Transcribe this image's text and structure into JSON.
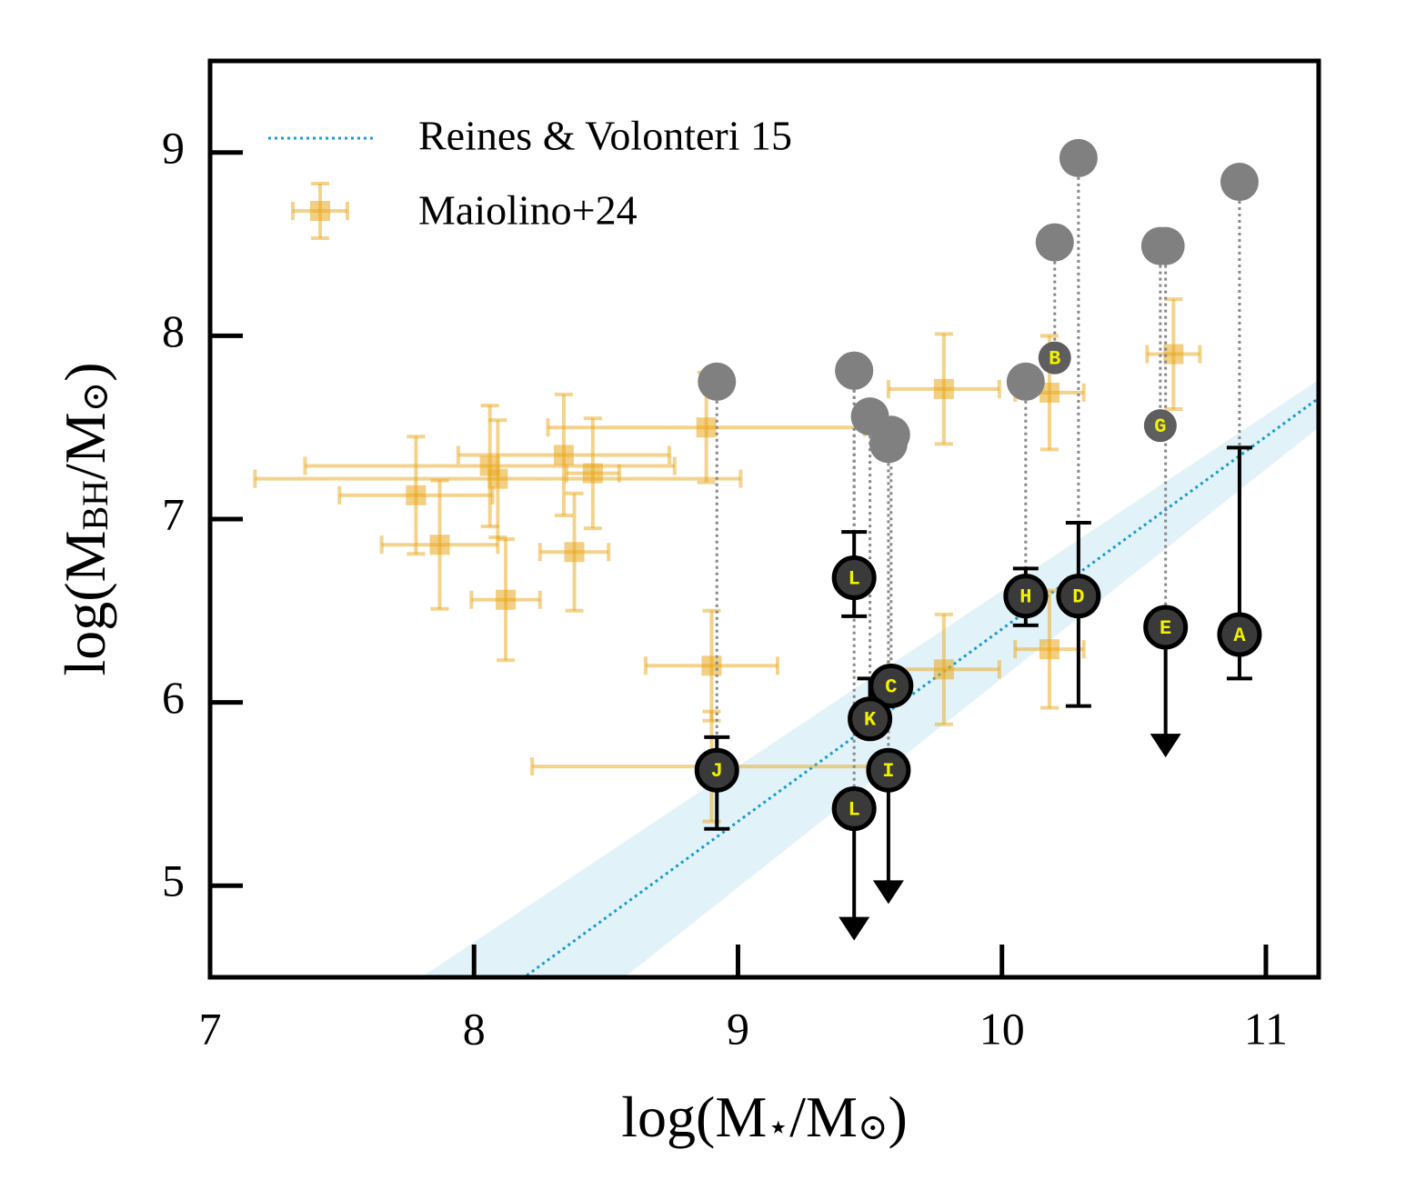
{
  "chart_data": {
    "type": "scatter",
    "xlim": [
      7,
      11.2
    ],
    "ylim": [
      4.5,
      9.5
    ],
    "xticks": [
      7,
      8,
      9,
      10,
      11
    ],
    "yticks": [
      5,
      6,
      7,
      8,
      9
    ],
    "x_label": [
      "log(M",
      "⋆",
      "/M",
      "⊙",
      ")"
    ],
    "y_label": [
      "log(M",
      "BH",
      "/M",
      "⊙",
      ")"
    ],
    "legend": "upper left",
    "grid": false,
    "relation": {
      "name": "Reines & Volonteri 15",
      "color": "#1a9bd0",
      "band_color": "#d6ecf6",
      "x": [
        8.2,
        11.2
      ],
      "y": [
        4.51,
        7.66
      ],
      "band_upper_x": [
        7.8,
        11.2
      ],
      "band_upper_y": [
        4.5,
        7.76
      ],
      "band_lower_x": [
        8.57,
        11.2
      ],
      "band_lower_y": [
        4.5,
        7.5
      ]
    },
    "maiolino": {
      "name": "Maiolino+24",
      "color": "#e8a81c",
      "x": [
        7.78,
        7.87,
        8.06,
        8.09,
        8.12,
        8.34,
        8.38,
        8.45,
        8.88,
        8.9,
        8.9,
        9.78,
        9.78,
        10.18,
        10.18,
        10.65
      ],
      "y": [
        7.13,
        6.86,
        7.29,
        7.22,
        6.56,
        7.35,
        6.82,
        7.25,
        7.5,
        6.2,
        5.65,
        6.18,
        7.71,
        7.69,
        6.29,
        7.9
      ],
      "xerr": [
        0.29,
        0.22,
        0.7,
        0.92,
        0.13,
        0.4,
        0.13,
        0.1,
        0.6,
        0.25,
        0.68,
        0.21,
        0.21,
        0.13,
        0.13,
        0.1
      ],
      "yerr": [
        0.32,
        0.35,
        0.33,
        0.32,
        0.33,
        0.33,
        0.32,
        0.3,
        0.3,
        0.3,
        0.3,
        0.3,
        0.3,
        0.31,
        0.32,
        0.3
      ]
    },
    "objects": {
      "labels": [
        "A",
        "B",
        "C",
        "D",
        "E",
        "G",
        "H",
        "I",
        "J",
        "K",
        "L",
        "L"
      ],
      "x": [
        10.9,
        10.2,
        9.58,
        10.29,
        10.62,
        10.6,
        10.09,
        9.57,
        8.92,
        9.5,
        9.44,
        9.44
      ],
      "y": [
        6.37,
        7.88,
        6.09,
        6.58,
        6.41,
        7.51,
        6.58,
        5.63,
        5.63,
        5.91,
        6.68,
        5.42
      ],
      "err_top": [
        7.39,
        null,
        null,
        6.98,
        null,
        null,
        6.73,
        null,
        5.81,
        6.13,
        6.93,
        null
      ],
      "err_bottom": [
        6.13,
        null,
        null,
        5.98,
        null,
        null,
        6.42,
        null,
        5.31,
        null,
        6.47,
        null
      ],
      "limit_to": [
        null,
        null,
        null,
        null,
        5.7,
        null,
        null,
        4.9,
        null,
        null,
        null,
        4.7
      ],
      "upper_y": [
        8.84,
        8.51,
        7.46,
        8.97,
        8.49,
        8.49,
        7.75,
        7.41,
        7.75,
        7.56,
        7.81,
        7.81
      ],
      "colors": [
        "#3a3a3a",
        "#5e5e5e",
        "#3a3a3a",
        "#3a3a3a",
        "#3a3a3a",
        "#5e5e5e",
        "#3a3a3a",
        "#3a3a3a",
        "#3a3a3a",
        "#3a3a3a",
        "#3a3a3a",
        "#3a3a3a"
      ],
      "edgecolors": [
        "#000000",
        null,
        "#000000",
        "#000000",
        "#000000",
        null,
        "#000000",
        "#000000",
        "#000000",
        "#000000",
        "#000000",
        "#000000"
      ],
      "label_color": "#f2f200",
      "upper_color": "#808080"
    }
  }
}
